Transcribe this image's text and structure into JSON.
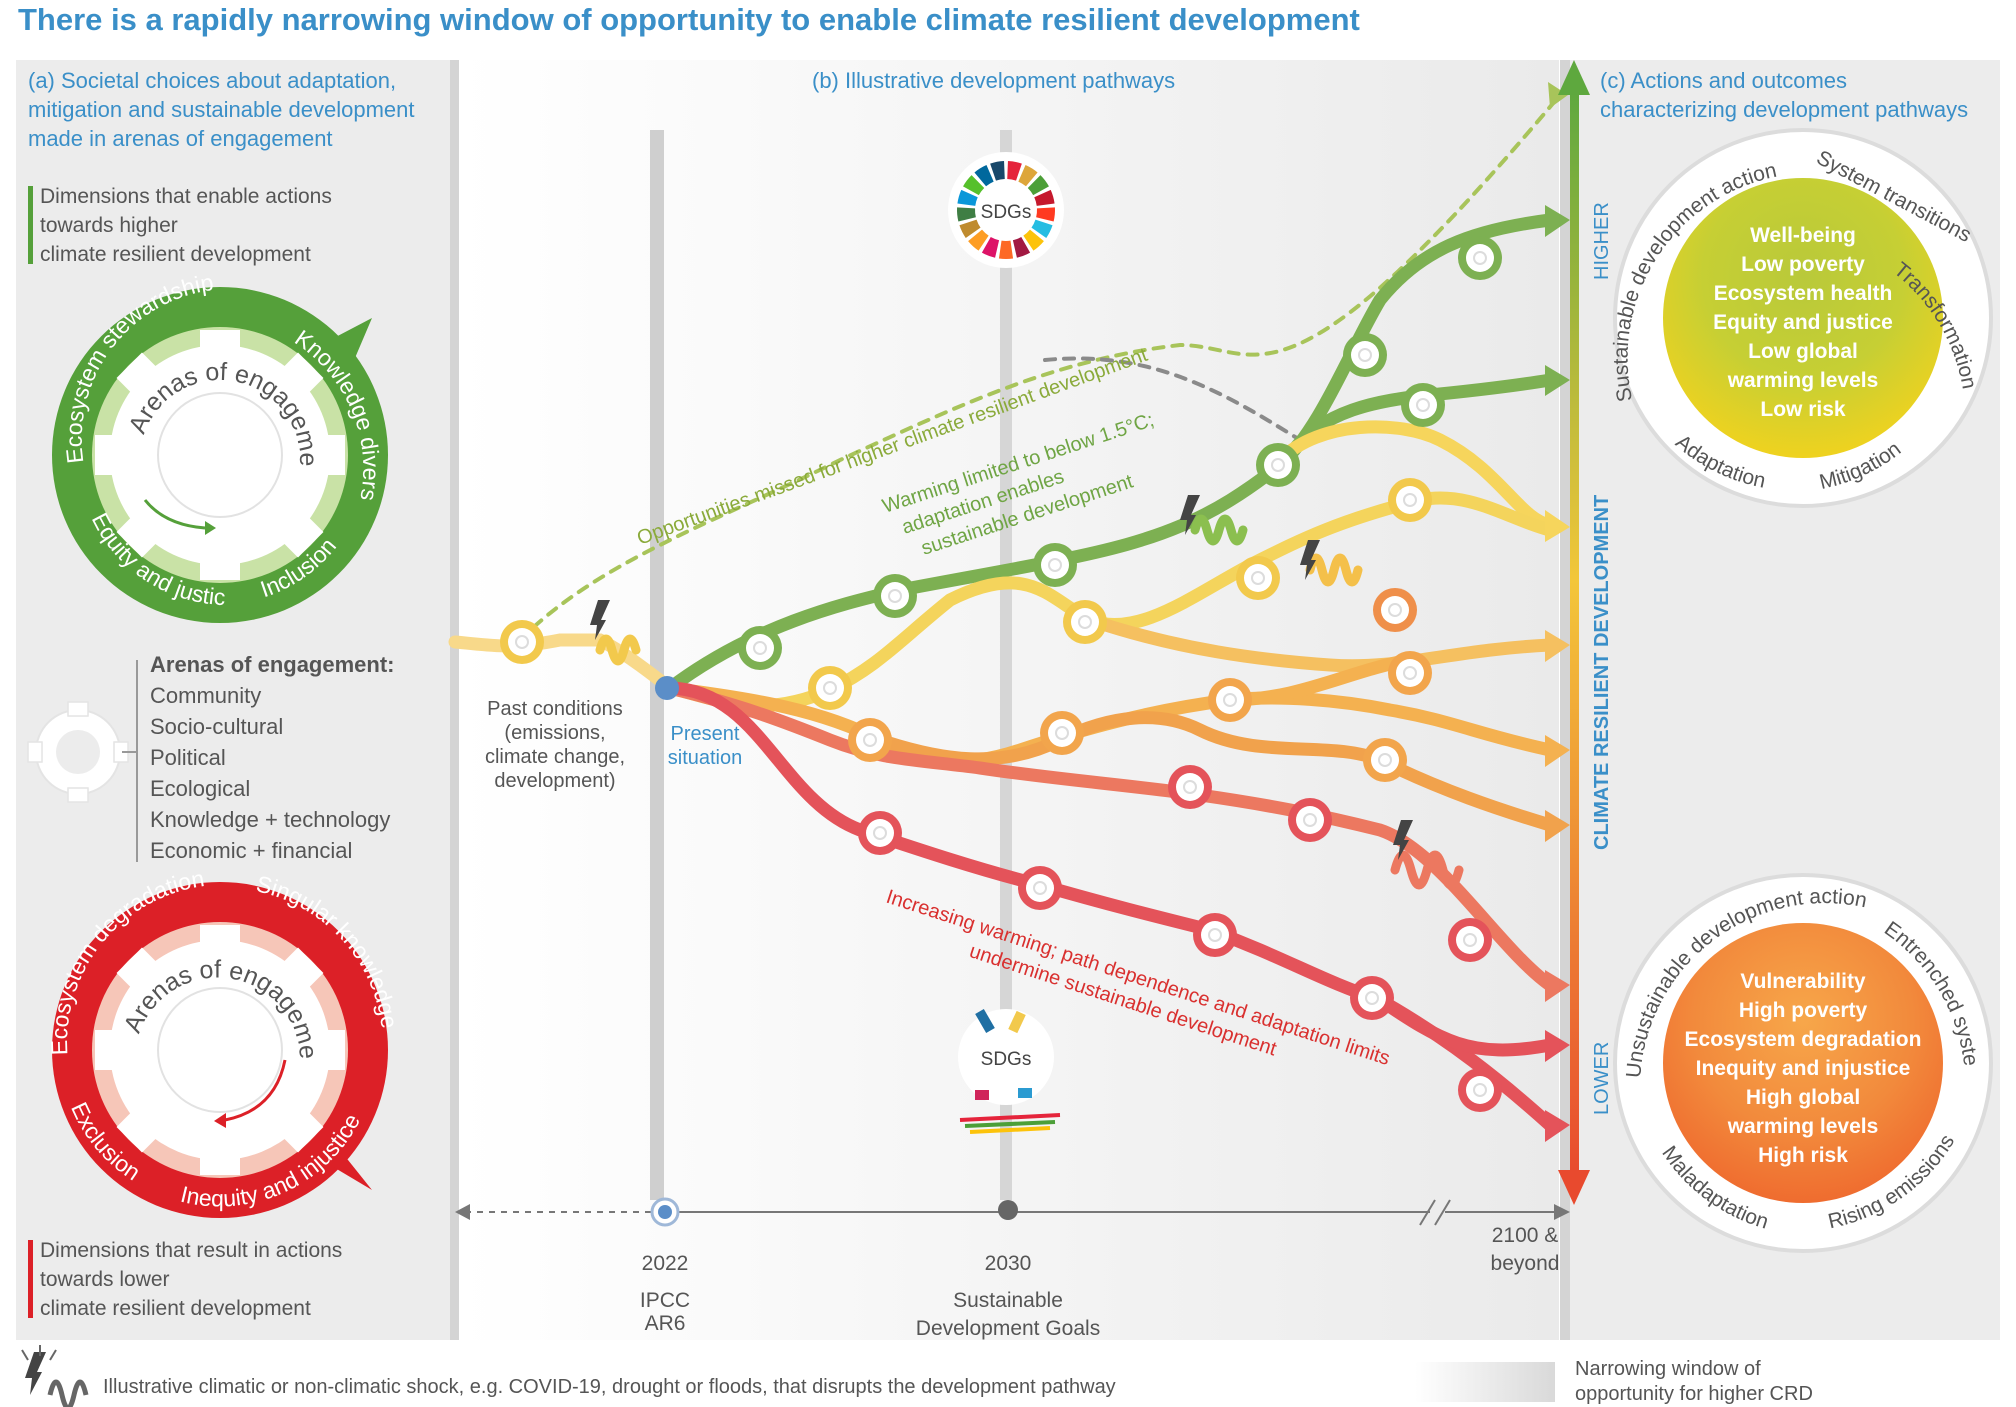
{
  "title": "There is a rapidly narrowing window of opportunity to enable climate resilient development",
  "panel_a": {
    "heading": [
      "(a) Societal choices about adaptation,",
      "mitigation and sustainable development",
      "made in arenas of engagement"
    ],
    "higher_caption": [
      "Dimensions that enable actions",
      "towards higher",
      "climate resilient development"
    ],
    "lower_caption": [
      "Dimensions that result in actions",
      "towards lower",
      "climate resilient development"
    ],
    "gear_center": "Arenas of engagement",
    "green_ring": [
      "Ecosystem stewardship",
      "Knowledge diversity",
      "Inclusion",
      "Equity and justice"
    ],
    "red_ring": [
      "Ecosystem degradation",
      "Singular knowledge",
      "Inequity and injustice",
      "Exclusion"
    ],
    "arenas_title": "Arenas of engagement:",
    "arenas": [
      "Community",
      "Socio-cultural",
      "Political",
      "Ecological",
      "Knowledge + technology",
      "Economic + financial"
    ],
    "colors": {
      "green": "#55a03a",
      "red": "#dc2027",
      "pink": "#f6c6b8"
    }
  },
  "panel_b": {
    "heading": "(b) Illustrative development pathways",
    "sdgs_label": "SDGs",
    "opportunities_missed": "Opportunities missed for higher climate resilient development",
    "warming_limited": [
      "Warming limited to below 1.5°C;",
      "adaptation enables",
      "sustainable development"
    ],
    "increasing_warming": [
      "Increasing warming; path dependence and adaptation limits",
      "undermine sustainable development"
    ],
    "past_conditions": [
      "Past conditions",
      "(emissions,",
      "climate change,",
      "development)"
    ],
    "present_situation": [
      "Present",
      "situation"
    ],
    "timeline": [
      {
        "year": "2022",
        "caption": [
          "IPCC",
          "AR6"
        ]
      },
      {
        "year": "2030",
        "caption": [
          "Sustainable",
          "Development Goals"
        ]
      },
      {
        "year": "2100 &",
        "caption": [
          "beyond"
        ]
      }
    ]
  },
  "panel_c": {
    "heading": [
      "(c) Actions and outcomes",
      "characterizing development pathways"
    ],
    "axis_label": "CLIMATE RESILIENT DEVELOPMENT",
    "higher": "HIGHER",
    "lower": "LOWER",
    "higher_outcomes": [
      "Well-being",
      "Low poverty",
      "Ecosystem health",
      "Equity and justice",
      "Low global",
      "warming levels",
      "Low risk"
    ],
    "higher_ring": [
      "Sustainable development action",
      "System transitions",
      "Transformation",
      "Mitigation",
      "Adaptation"
    ],
    "lower_outcomes": [
      "Vulnerability",
      "High poverty",
      "Ecosystem degradation",
      "Inequity and injustice",
      "High global",
      "warming levels",
      "High risk"
    ],
    "lower_ring": [
      "Unsustainable development action",
      "Entrenched systems",
      "Rising emissions",
      "Maladaptation"
    ]
  },
  "legend": {
    "shock": "Illustrative climatic or non-climatic shock, e.g. COVID-19, drought or floods, that disrupts the development pathway",
    "window": [
      "Narrowing window of",
      "opportunity for higher CRD"
    ]
  },
  "colors": {
    "title_blue": "#3a8fc8",
    "dark_green": "#5a9e3c",
    "light_green": "#8bbf4f",
    "yellow": "#f2cc32",
    "orange": "#f29a3a",
    "red_orange": "#ea6a4b",
    "red": "#e4353a"
  }
}
